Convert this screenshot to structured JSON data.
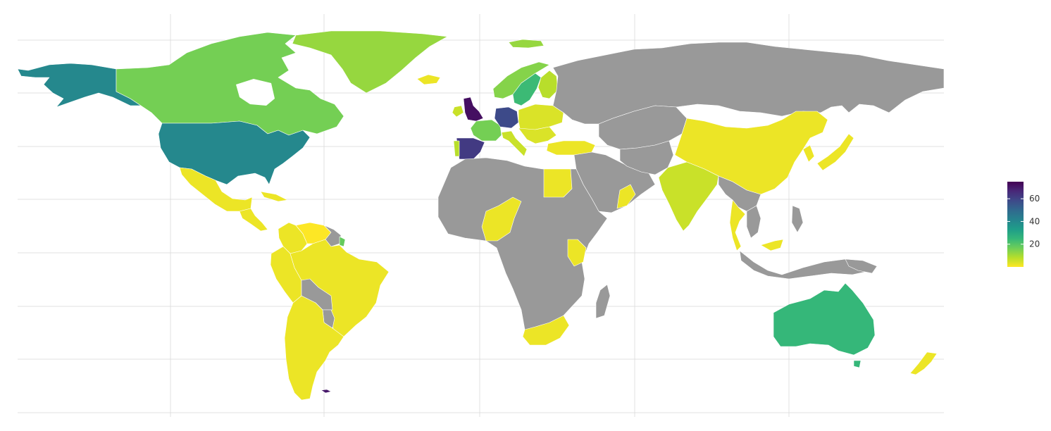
{
  "map": {
    "projection": "equirectangular",
    "no_data_color": "#999999",
    "gridlines": true,
    "colorscale": {
      "name": "viridis",
      "reversed": true,
      "stops": [
        "#fde725",
        "#b5de2b",
        "#6ece58",
        "#35b779",
        "#1f9e89",
        "#26828e",
        "#31688e",
        "#3e4989",
        "#482878",
        "#440154"
      ],
      "range": [
        0,
        75
      ],
      "ticks": [
        20,
        40,
        60
      ],
      "tick_labels": [
        "20",
        "40",
        "60"
      ]
    },
    "legend_position": "right"
  },
  "regions": [
    {
      "id": "alaska",
      "value": 40
    },
    {
      "id": "canada",
      "value": 16
    },
    {
      "id": "usa",
      "value": 40
    },
    {
      "id": "greenland",
      "value": 12
    },
    {
      "id": "iceland",
      "value": 2
    },
    {
      "id": "svalbard",
      "value": 12
    },
    {
      "id": "mexico",
      "value": 2
    },
    {
      "id": "central-america",
      "value": 2
    },
    {
      "id": "cuba",
      "value": 2
    },
    {
      "id": "colombia",
      "value": 2
    },
    {
      "id": "venezuela",
      "value": 0
    },
    {
      "id": "guyana-suriname",
      "value": null
    },
    {
      "id": "french-guiana",
      "value": 18
    },
    {
      "id": "peru-ecuador",
      "value": 2
    },
    {
      "id": "brazil",
      "value": 2
    },
    {
      "id": "bolivia",
      "value": null
    },
    {
      "id": "paraguay",
      "value": null
    },
    {
      "id": "argentina-chile",
      "value": 2
    },
    {
      "id": "falklands",
      "value": 70
    },
    {
      "id": "uk",
      "value": 72
    },
    {
      "id": "ireland",
      "value": 6
    },
    {
      "id": "france",
      "value": 16
    },
    {
      "id": "spain",
      "value": 62
    },
    {
      "id": "portugal",
      "value": 8
    },
    {
      "id": "germany",
      "value": 58
    },
    {
      "id": "norway",
      "value": 14
    },
    {
      "id": "sweden",
      "value": 24
    },
    {
      "id": "finland",
      "value": 8
    },
    {
      "id": "italy",
      "value": 6
    },
    {
      "id": "eastern-europe",
      "value": 4
    },
    {
      "id": "turkey",
      "value": 2
    },
    {
      "id": "russia",
      "value": null
    },
    {
      "id": "central-asia",
      "value": null
    },
    {
      "id": "middle-east",
      "value": null
    },
    {
      "id": "oman-uae",
      "value": 2
    },
    {
      "id": "india",
      "value": 6
    },
    {
      "id": "china",
      "value": 2
    },
    {
      "id": "japan",
      "value": 2
    },
    {
      "id": "korea",
      "value": 2
    },
    {
      "id": "southeast-asia",
      "value": null
    },
    {
      "id": "thailand",
      "value": 2
    },
    {
      "id": "malaysia",
      "value": 2
    },
    {
      "id": "indonesia",
      "value": null
    },
    {
      "id": "philippines",
      "value": null
    },
    {
      "id": "north-africa",
      "value": null
    },
    {
      "id": "egypt",
      "value": 2
    },
    {
      "id": "nigeria",
      "value": 2
    },
    {
      "id": "kenya",
      "value": 2
    },
    {
      "id": "sub-saharan-africa",
      "value": null
    },
    {
      "id": "south-africa",
      "value": 2
    },
    {
      "id": "madagascar",
      "value": null
    },
    {
      "id": "australia",
      "value": 25
    },
    {
      "id": "tasmania",
      "value": 25
    },
    {
      "id": "new-zealand",
      "value": 2
    },
    {
      "id": "png",
      "value": null
    }
  ]
}
